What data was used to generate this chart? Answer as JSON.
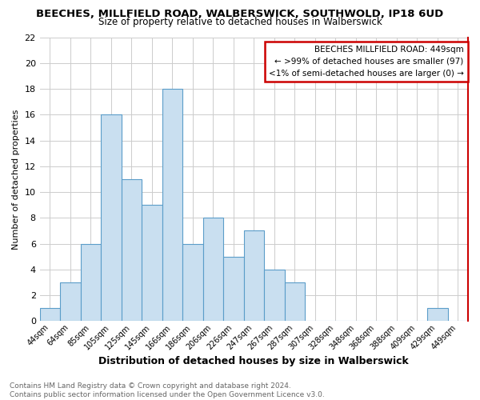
{
  "title1": "BEECHES, MILLFIELD ROAD, WALBERSWICK, SOUTHWOLD, IP18 6UD",
  "title2": "Size of property relative to detached houses in Walberswick",
  "xlabel": "Distribution of detached houses by size in Walberswick",
  "ylabel": "Number of detached properties",
  "footnote": "Contains HM Land Registry data © Crown copyright and database right 2024.\nContains public sector information licensed under the Open Government Licence v3.0.",
  "bar_labels": [
    "44sqm",
    "64sqm",
    "85sqm",
    "105sqm",
    "125sqm",
    "145sqm",
    "166sqm",
    "186sqm",
    "206sqm",
    "226sqm",
    "247sqm",
    "267sqm",
    "287sqm",
    "307sqm",
    "328sqm",
    "348sqm",
    "368sqm",
    "388sqm",
    "409sqm",
    "429sqm",
    "449sqm"
  ],
  "bar_values": [
    1,
    3,
    6,
    16,
    11,
    9,
    18,
    6,
    8,
    5,
    7,
    4,
    3,
    0,
    0,
    0,
    0,
    0,
    0,
    1,
    0
  ],
  "bar_color": "#c9dff0",
  "bar_edge_color": "#5b9dc9",
  "ylim": [
    0,
    22
  ],
  "yticks": [
    0,
    2,
    4,
    6,
    8,
    10,
    12,
    14,
    16,
    18,
    20,
    22
  ],
  "annotation_box_text": "BEECHES MILLFIELD ROAD: 449sqm\n← >99% of detached houses are smaller (97)\n<1% of semi-detached houses are larger (0) →",
  "annotation_box_color": "#ffffff",
  "annotation_box_edge_color": "#cc0000",
  "right_spine_color": "#cc0000",
  "grid_color": "#cccccc",
  "background_color": "#ffffff",
  "title1_fontsize": 9.5,
  "title2_fontsize": 8.5,
  "xlabel_fontsize": 9,
  "ylabel_fontsize": 8,
  "xtick_fontsize": 7,
  "ytick_fontsize": 8,
  "footnote_fontsize": 6.5,
  "annot_fontsize": 7.5
}
